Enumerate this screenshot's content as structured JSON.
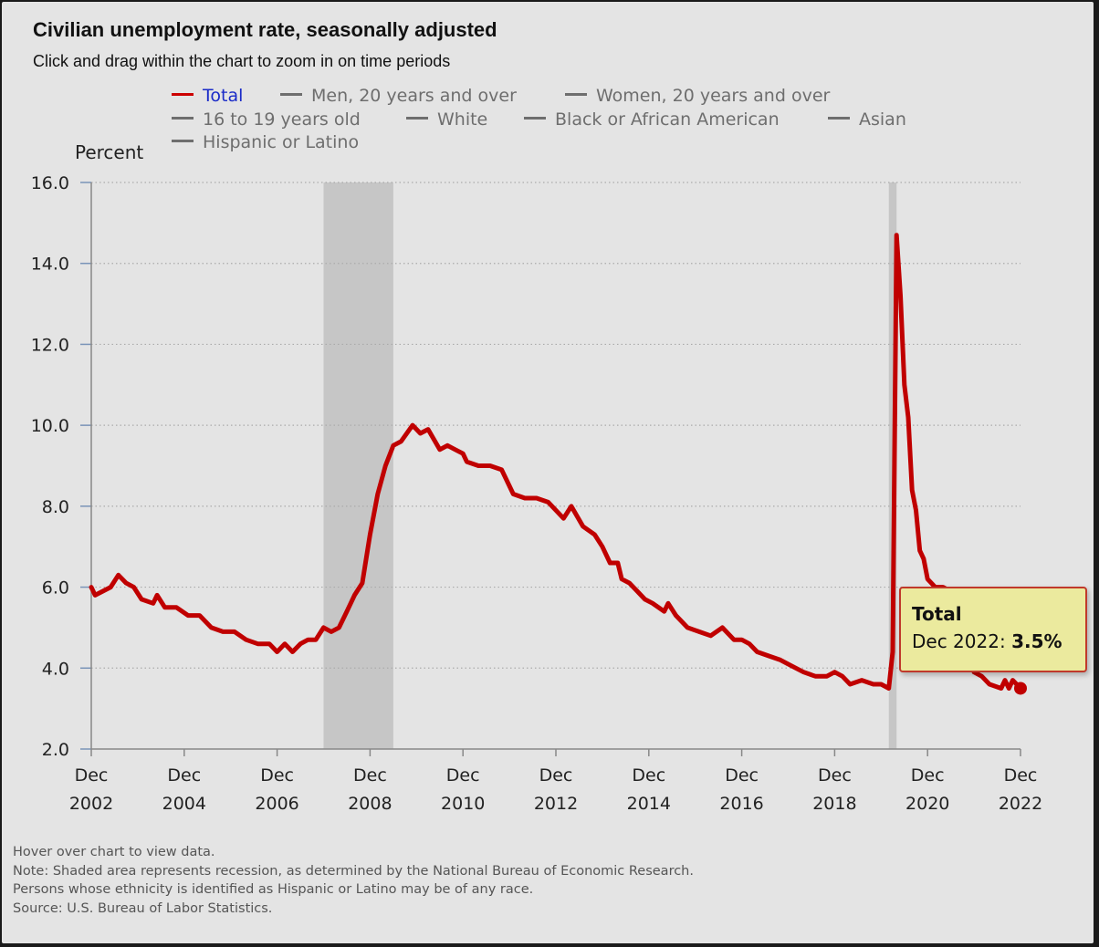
{
  "title": "Civilian unemployment rate, seasonally adjusted",
  "subtitle": "Click and drag within the chart to zoom in on time periods",
  "legend": [
    {
      "label": "Total",
      "active": true
    },
    {
      "label": "Men, 20 years and over",
      "active": false
    },
    {
      "label": "Women, 20 years and over",
      "active": false
    },
    {
      "label": "16 to 19 years old",
      "active": false
    },
    {
      "label": "White",
      "active": false
    },
    {
      "label": "Black or African American",
      "active": false
    },
    {
      "label": "Asian",
      "active": false
    },
    {
      "label": "Hispanic or Latino",
      "active": false
    }
  ],
  "tooltip": {
    "title": "Total",
    "date_label": "Dec 2022: ",
    "value": "3.5%"
  },
  "notes": [
    "Hover over chart to view data.",
    "Note: Shaded area represents recession, as determined by the National Bureau of Economic Research.",
    "Persons whose ethnicity is identified as Hispanic or Latino may be of any race.",
    "Source: U.S. Bureau of Labor Statistics."
  ],
  "colors": {
    "series_total": "#c00000",
    "recession_shade": "#c6c6c6",
    "grid": "#aaaaaa",
    "axis": "#888888",
    "tooltip_bg": "#ebea9e",
    "tooltip_border": "#c0392b",
    "legend_active_text": "#1a2bc8",
    "legend_inactive": "#6e6e6e"
  },
  "chart_data": {
    "type": "line",
    "ylabel": "Percent",
    "xlabel": "",
    "ylim": [
      2.0,
      16.0
    ],
    "yticks": [
      2.0,
      4.0,
      6.0,
      8.0,
      10.0,
      12.0,
      14.0,
      16.0
    ],
    "x_tick_labels": [
      {
        "t": 2002.917,
        "month": "Dec",
        "year": "2002"
      },
      {
        "t": 2004.917,
        "month": "Dec",
        "year": "2004"
      },
      {
        "t": 2006.917,
        "month": "Dec",
        "year": "2006"
      },
      {
        "t": 2008.917,
        "month": "Dec",
        "year": "2008"
      },
      {
        "t": 2010.917,
        "month": "Dec",
        "year": "2010"
      },
      {
        "t": 2012.917,
        "month": "Dec",
        "year": "2012"
      },
      {
        "t": 2014.917,
        "month": "Dec",
        "year": "2014"
      },
      {
        "t": 2016.917,
        "month": "Dec",
        "year": "2016"
      },
      {
        "t": 2018.917,
        "month": "Dec",
        "year": "2018"
      },
      {
        "t": 2020.917,
        "month": "Dec",
        "year": "2020"
      },
      {
        "t": 2022.917,
        "month": "Dec",
        "year": "2022"
      }
    ],
    "xlim": [
      2002.917,
      2022.917
    ],
    "grid": "horizontal dotted",
    "recessions": [
      {
        "start": "Dec 2007",
        "end": "Jun 2009",
        "t0": 2007.917,
        "t1": 2009.417
      },
      {
        "start": "Feb 2020",
        "end": "Apr 2020",
        "t0": 2020.083,
        "t1": 2020.25
      }
    ],
    "series": [
      {
        "name": "Total",
        "points": [
          [
            2002.917,
            6.0
          ],
          [
            2003.0,
            5.8
          ],
          [
            2003.167,
            5.9
          ],
          [
            2003.333,
            6.0
          ],
          [
            2003.5,
            6.3
          ],
          [
            2003.667,
            6.1
          ],
          [
            2003.833,
            6.0
          ],
          [
            2004.0,
            5.7
          ],
          [
            2004.25,
            5.6
          ],
          [
            2004.333,
            5.8
          ],
          [
            2004.5,
            5.5
          ],
          [
            2004.75,
            5.5
          ],
          [
            2005.0,
            5.3
          ],
          [
            2005.25,
            5.3
          ],
          [
            2005.5,
            5.0
          ],
          [
            2005.75,
            4.9
          ],
          [
            2006.0,
            4.9
          ],
          [
            2006.25,
            4.7
          ],
          [
            2006.5,
            4.6
          ],
          [
            2006.75,
            4.6
          ],
          [
            2006.917,
            4.4
          ],
          [
            2007.083,
            4.6
          ],
          [
            2007.25,
            4.4
          ],
          [
            2007.417,
            4.6
          ],
          [
            2007.583,
            4.7
          ],
          [
            2007.75,
            4.7
          ],
          [
            2007.917,
            5.0
          ],
          [
            2008.083,
            4.9
          ],
          [
            2008.25,
            5.0
          ],
          [
            2008.417,
            5.4
          ],
          [
            2008.583,
            5.8
          ],
          [
            2008.75,
            6.1
          ],
          [
            2008.917,
            7.3
          ],
          [
            2009.083,
            8.3
          ],
          [
            2009.25,
            9.0
          ],
          [
            2009.417,
            9.5
          ],
          [
            2009.583,
            9.6
          ],
          [
            2009.833,
            10.0
          ],
          [
            2010.0,
            9.8
          ],
          [
            2010.167,
            9.9
          ],
          [
            2010.417,
            9.4
          ],
          [
            2010.583,
            9.5
          ],
          [
            2010.75,
            9.4
          ],
          [
            2010.917,
            9.3
          ],
          [
            2011.0,
            9.1
          ],
          [
            2011.25,
            9.0
          ],
          [
            2011.5,
            9.0
          ],
          [
            2011.75,
            8.9
          ],
          [
            2012.0,
            8.3
          ],
          [
            2012.25,
            8.2
          ],
          [
            2012.5,
            8.2
          ],
          [
            2012.75,
            8.1
          ],
          [
            2012.917,
            7.9
          ],
          [
            2013.083,
            7.7
          ],
          [
            2013.25,
            8.0
          ],
          [
            2013.5,
            7.5
          ],
          [
            2013.75,
            7.3
          ],
          [
            2013.917,
            7.0
          ],
          [
            2014.083,
            6.6
          ],
          [
            2014.25,
            6.6
          ],
          [
            2014.333,
            6.2
          ],
          [
            2014.5,
            6.1
          ],
          [
            2014.667,
            5.9
          ],
          [
            2014.833,
            5.7
          ],
          [
            2015.0,
            5.6
          ],
          [
            2015.25,
            5.4
          ],
          [
            2015.333,
            5.6
          ],
          [
            2015.5,
            5.3
          ],
          [
            2015.75,
            5.0
          ],
          [
            2016.0,
            4.9
          ],
          [
            2016.25,
            4.8
          ],
          [
            2016.5,
            5.0
          ],
          [
            2016.75,
            4.7
          ],
          [
            2016.917,
            4.7
          ],
          [
            2017.083,
            4.6
          ],
          [
            2017.25,
            4.4
          ],
          [
            2017.5,
            4.3
          ],
          [
            2017.75,
            4.2
          ],
          [
            2017.917,
            4.1
          ],
          [
            2018.083,
            4.0
          ],
          [
            2018.25,
            3.9
          ],
          [
            2018.5,
            3.8
          ],
          [
            2018.75,
            3.8
          ],
          [
            2018.917,
            3.9
          ],
          [
            2019.083,
            3.8
          ],
          [
            2019.25,
            3.6
          ],
          [
            2019.5,
            3.7
          ],
          [
            2019.75,
            3.6
          ],
          [
            2019.917,
            3.6
          ],
          [
            2020.083,
            3.5
          ],
          [
            2020.167,
            4.4
          ],
          [
            2020.25,
            14.7
          ],
          [
            2020.333,
            13.2
          ],
          [
            2020.417,
            11.0
          ],
          [
            2020.5,
            10.2
          ],
          [
            2020.583,
            8.4
          ],
          [
            2020.667,
            7.9
          ],
          [
            2020.75,
            6.9
          ],
          [
            2020.833,
            6.7
          ],
          [
            2020.917,
            6.2
          ],
          [
            2021.083,
            6.0
          ],
          [
            2021.25,
            6.0
          ],
          [
            2021.417,
            5.9
          ],
          [
            2021.583,
            5.2
          ],
          [
            2021.75,
            4.5
          ],
          [
            2021.917,
            3.9
          ],
          [
            2022.083,
            3.8
          ],
          [
            2022.25,
            3.6
          ],
          [
            2022.5,
            3.5
          ],
          [
            2022.583,
            3.7
          ],
          [
            2022.667,
            3.5
          ],
          [
            2022.75,
            3.7
          ],
          [
            2022.833,
            3.6
          ],
          [
            2022.917,
            3.5
          ]
        ]
      }
    ],
    "highlight": {
      "t": 2022.917,
      "value": 3.5
    }
  }
}
